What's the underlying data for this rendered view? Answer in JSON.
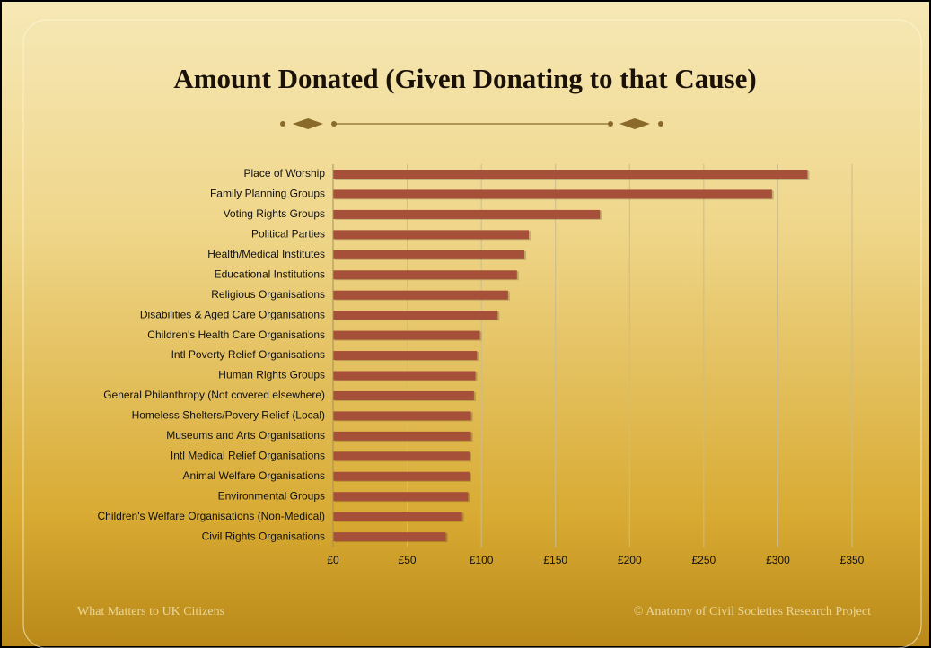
{
  "chart_data": {
    "type": "bar",
    "orientation": "horizontal",
    "title": "Amount Donated (Given Donating to that Cause)",
    "categories": [
      "Place of Worship",
      "Family Planning Groups",
      "Voting Rights Groups",
      "Political Parties",
      "Health/Medical Institutes",
      "Educational Institutions",
      "Religious Organisations",
      "Disabilities & Aged Care Organisations",
      "Children's Health Care Organisations",
      "Intl Poverty Relief Organisations",
      "Human Rights Groups",
      "General Philanthropy (Not covered elsewhere)",
      "Homeless Shelters/Povery Relief (Local)",
      "Museums and Arts Organisations",
      "Intl Medical Relief Organisations",
      "Animal Welfare Organisations",
      "Environmental Groups",
      "Children's Welfare Organisations (Non-Medical)",
      "Civil Rights Organisations"
    ],
    "values": [
      320,
      296,
      180,
      132,
      129,
      124,
      118,
      111,
      99,
      97,
      96,
      95,
      93,
      93,
      92,
      92,
      91,
      87,
      76
    ],
    "color": "#a64f39",
    "xlim": [
      0,
      350
    ],
    "xticks": [
      {
        "value": 0,
        "label": "£0"
      },
      {
        "value": 50,
        "label": "£50"
      },
      {
        "value": 100,
        "label": "£100"
      },
      {
        "value": 150,
        "label": "£150"
      },
      {
        "value": 200,
        "label": "£200"
      },
      {
        "value": 250,
        "label": "£250"
      },
      {
        "value": 300,
        "label": "£300"
      },
      {
        "value": 350,
        "label": "£350"
      }
    ],
    "grid": true
  },
  "footer": {
    "left": "What Matters to UK Citizens",
    "right": "© Anatomy of Civil Societies Research Project"
  }
}
